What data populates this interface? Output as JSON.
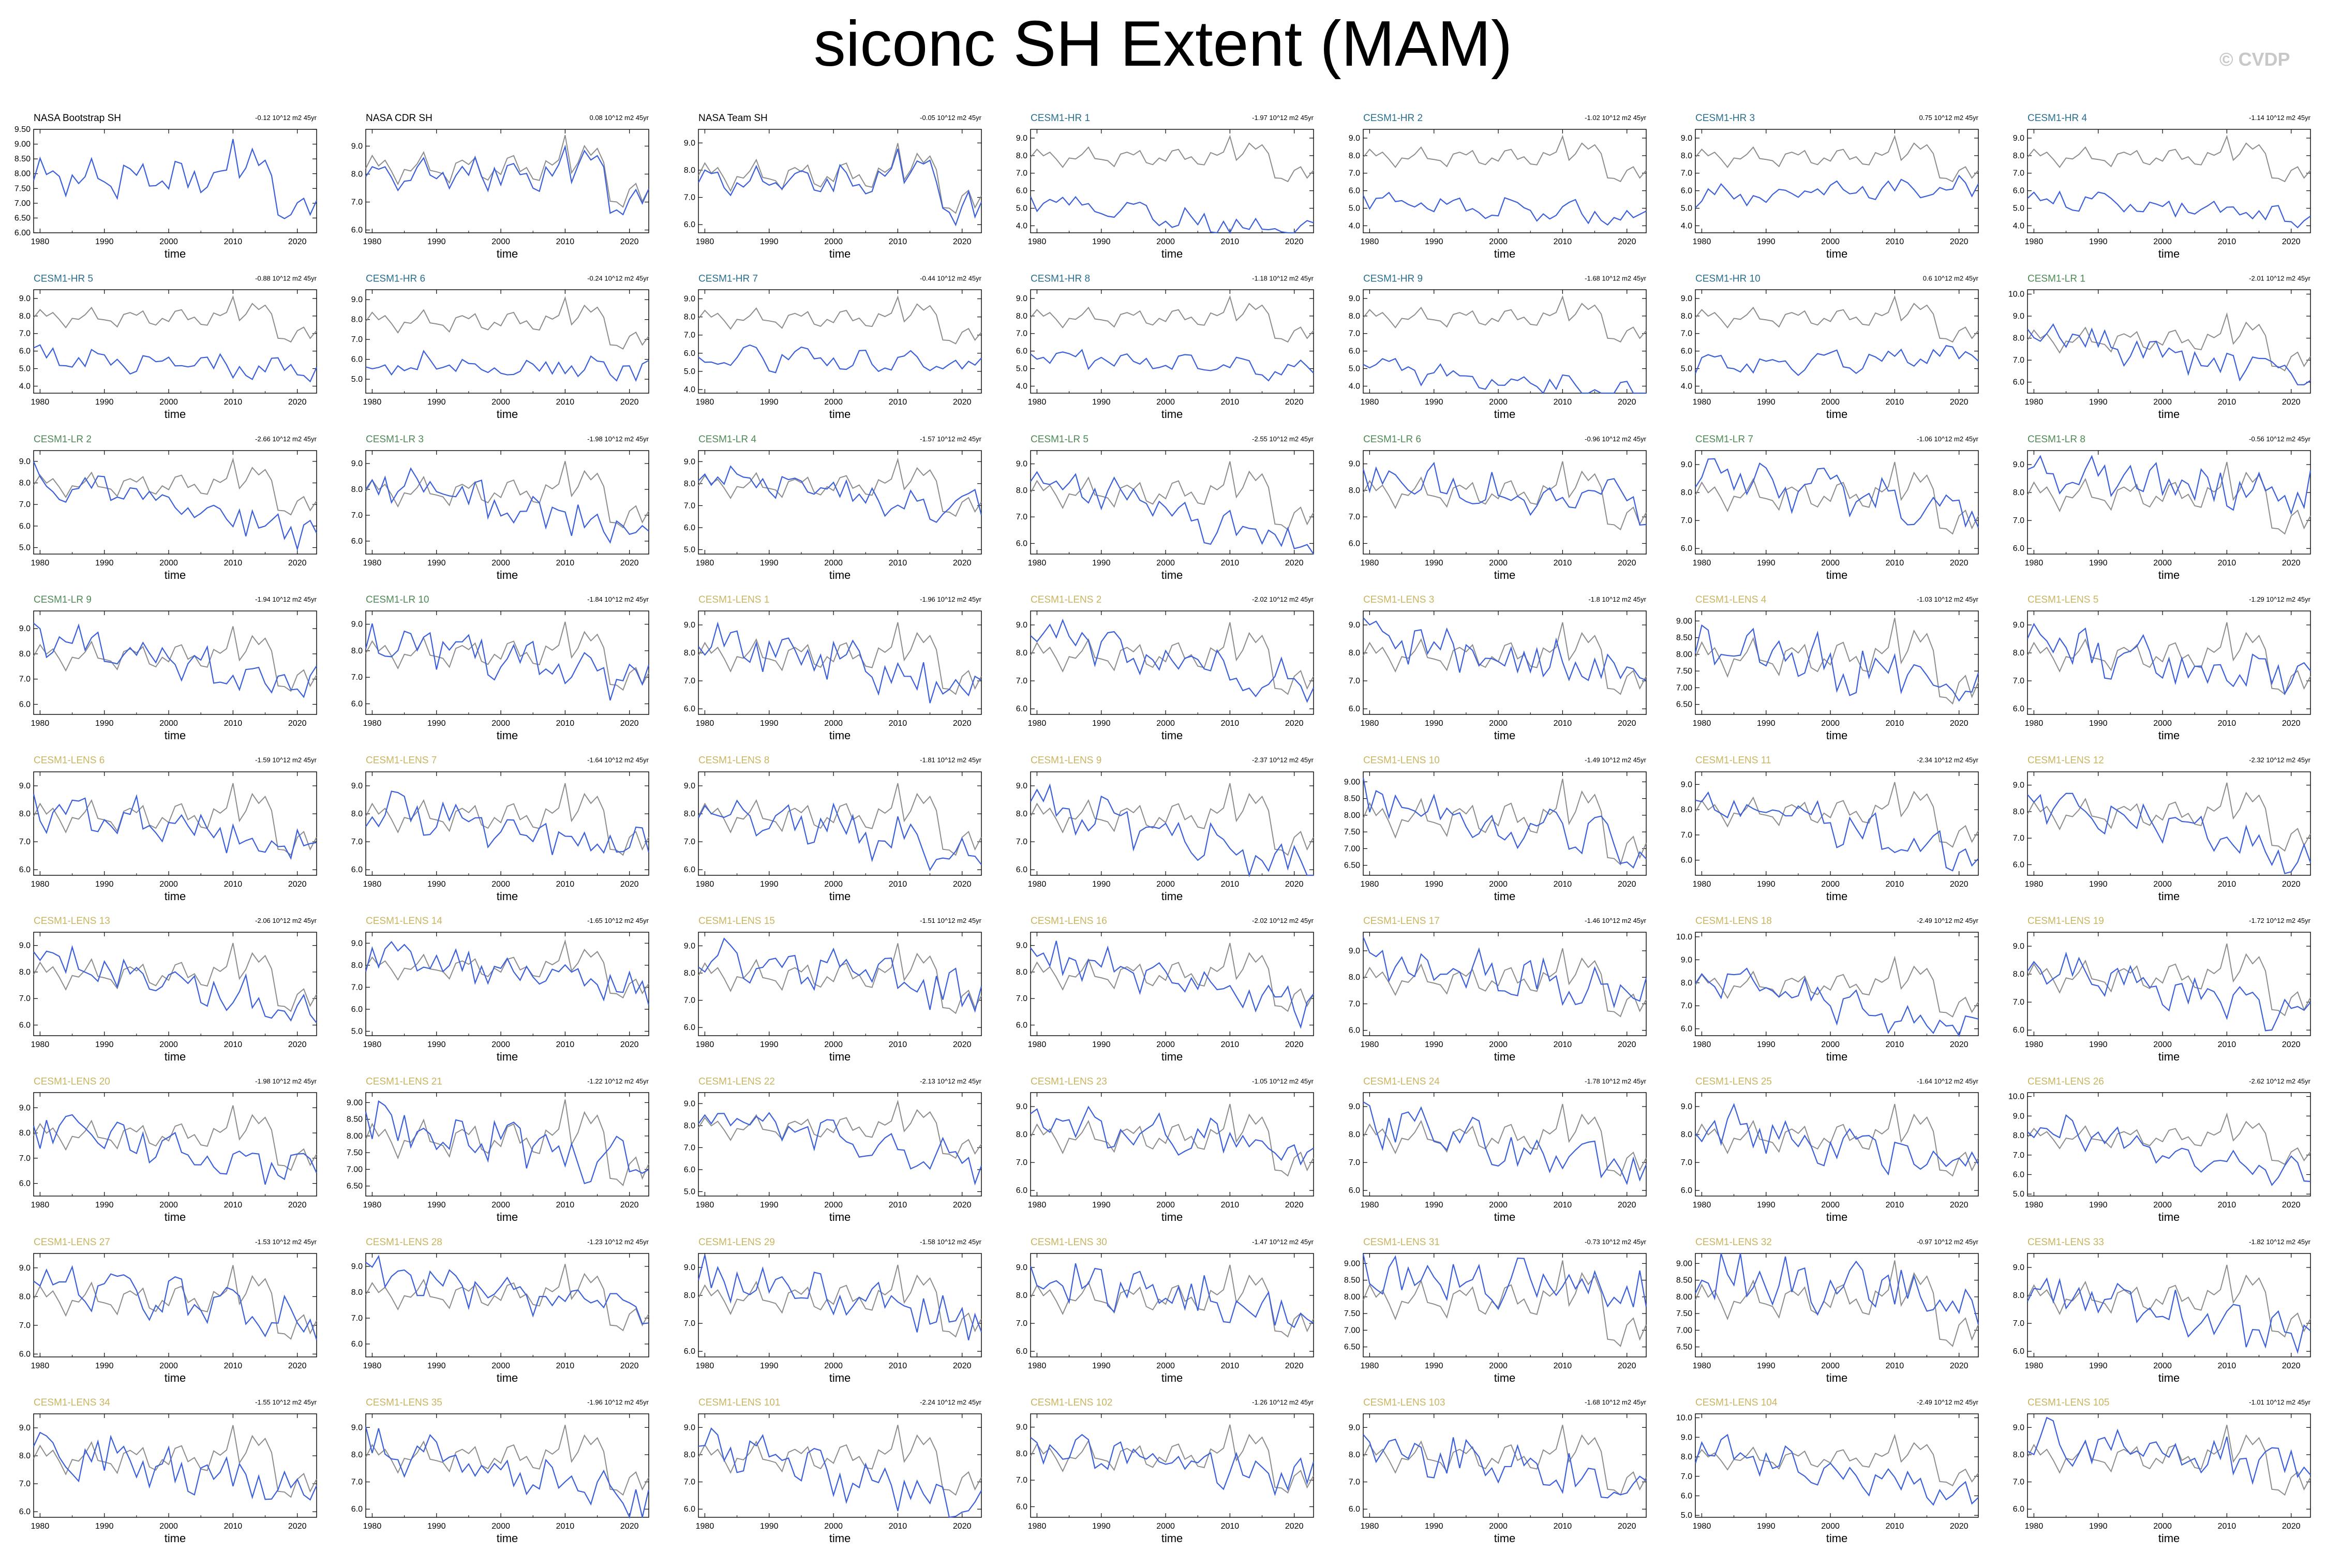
{
  "page": {
    "title": "siconc SH Extent (MAM)",
    "copyright": "© CVDP"
  },
  "colors": {
    "obs": "#000000",
    "hr": "#2a6f8f",
    "lr": "#4d8a55",
    "lens": "#c9b560",
    "model_line": "#3b5fd9",
    "ref_line": "#8c8c8c"
  },
  "chart_data": {
    "type": "line",
    "x_range": [
      1979,
      2023
    ],
    "xticks": [
      "1980",
      "1990",
      "2000",
      "2010",
      "2020"
    ],
    "xlabel": "time",
    "grid": false,
    "panels": [
      {
        "title": "NASA Bootstrap SH",
        "group": "obs",
        "trend": "-0.12 10^12 m2 45yr",
        "yticks": [
          "9.50",
          "9.00",
          "8.50",
          "8.00",
          "7.50",
          "7.00",
          "6.50",
          "6.00"
        ],
        "ylim": [
          6.0,
          9.5
        ]
      },
      {
        "title": "NASA CDR SH",
        "group": "obs",
        "trend": "0.08 10^12 m2 45yr",
        "yticks": [
          "9.0",
          "8.0",
          "7.0",
          "6.0"
        ],
        "ylim": [
          5.9,
          9.6
        ]
      },
      {
        "title": "NASA Team SH",
        "group": "obs",
        "trend": "-0.05 10^12 m2 45yr",
        "yticks": [
          "9.0",
          "8.0",
          "7.0",
          "6.0"
        ],
        "ylim": [
          5.7,
          9.5
        ]
      },
      {
        "title": "CESM1-HR 1",
        "group": "hr",
        "trend": "-1.97 10^12 m2 45yr",
        "yticks": [
          "9.0",
          "8.0",
          "7.0",
          "6.0",
          "5.0",
          "4.0"
        ],
        "ylim": [
          3.6,
          9.5
        ]
      },
      {
        "title": "CESM1-HR 2",
        "group": "hr",
        "trend": "-1.02 10^12 m2 45yr",
        "yticks": [
          "9.0",
          "8.0",
          "7.0",
          "6.0",
          "5.0",
          "4.0"
        ],
        "ylim": [
          3.6,
          9.5
        ]
      },
      {
        "title": "CESM1-HR 3",
        "group": "hr",
        "trend": "0.75 10^12 m2 45yr",
        "yticks": [
          "9.0",
          "8.0",
          "7.0",
          "6.0",
          "5.0",
          "4.0"
        ],
        "ylim": [
          3.6,
          9.5
        ]
      },
      {
        "title": "CESM1-HR 4",
        "group": "hr",
        "trend": "-1.14 10^12 m2 45yr",
        "yticks": [
          "9.0",
          "8.0",
          "7.0",
          "6.0",
          "5.0",
          "4.0"
        ],
        "ylim": [
          3.6,
          9.5
        ]
      },
      {
        "title": "CESM1-HR 5",
        "group": "hr",
        "trend": "-0.88 10^12 m2 45yr",
        "yticks": [
          "9.0",
          "8.0",
          "7.0",
          "6.0",
          "5.0",
          "4.0"
        ],
        "ylim": [
          3.6,
          9.5
        ]
      },
      {
        "title": "CESM1-HR 6",
        "group": "hr",
        "trend": "-0.24 10^12 m2 45yr",
        "yticks": [
          "9.0",
          "8.0",
          "7.0",
          "6.0",
          "5.0"
        ],
        "ylim": [
          4.3,
          9.5
        ]
      },
      {
        "title": "CESM1-HR 7",
        "group": "hr",
        "trend": "-0.44 10^12 m2 45yr",
        "yticks": [
          "9.0",
          "8.0",
          "7.0",
          "6.0",
          "5.0",
          "4.0"
        ],
        "ylim": [
          3.8,
          9.5
        ]
      },
      {
        "title": "CESM1-HR 8",
        "group": "hr",
        "trend": "-1.18 10^12 m2 45yr",
        "yticks": [
          "9.0",
          "8.0",
          "7.0",
          "6.0",
          "5.0",
          "4.0"
        ],
        "ylim": [
          3.6,
          9.5
        ]
      },
      {
        "title": "CESM1-HR 9",
        "group": "hr",
        "trend": "-1.68 10^12 m2 45yr",
        "yticks": [
          "9.0",
          "8.0",
          "7.0",
          "6.0",
          "5.0",
          "4.0"
        ],
        "ylim": [
          3.6,
          9.5
        ]
      },
      {
        "title": "CESM1-HR 10",
        "group": "hr",
        "trend": "0.6 10^12 m2 45yr",
        "yticks": [
          "9.0",
          "8.0",
          "7.0",
          "6.0",
          "5.0",
          "4.0"
        ],
        "ylim": [
          3.6,
          9.5
        ]
      },
      {
        "title": "CESM1-LR 1",
        "group": "lr",
        "trend": "-2.01 10^12 m2 45yr",
        "yticks": [
          "10.0",
          "9.0",
          "8.0",
          "7.0",
          "6.0"
        ],
        "ylim": [
          5.5,
          10.2
        ]
      },
      {
        "title": "CESM1-LR 2",
        "group": "lr",
        "trend": "-2.66 10^12 m2 45yr",
        "yticks": [
          "9.0",
          "8.0",
          "7.0",
          "6.0",
          "5.0"
        ],
        "ylim": [
          4.7,
          9.5
        ]
      },
      {
        "title": "CESM1-LR 3",
        "group": "lr",
        "trend": "-1.98 10^12 m2 45yr",
        "yticks": [
          "9.0",
          "8.0",
          "7.0",
          "6.0"
        ],
        "ylim": [
          5.5,
          9.5
        ]
      },
      {
        "title": "CESM1-LR 4",
        "group": "lr",
        "trend": "-1.57 10^12 m2 45yr",
        "yticks": [
          "9.0",
          "8.0",
          "7.0",
          "6.0",
          "5.0"
        ],
        "ylim": [
          4.8,
          9.5
        ]
      },
      {
        "title": "CESM1-LR 5",
        "group": "lr",
        "trend": "-2.55 10^12 m2 45yr",
        "yticks": [
          "9.0",
          "8.0",
          "7.0",
          "6.0"
        ],
        "ylim": [
          5.6,
          9.5
        ]
      },
      {
        "title": "CESM1-LR 6",
        "group": "lr",
        "trend": "-0.96 10^12 m2 45yr",
        "yticks": [
          "9.0",
          "8.0",
          "7.0",
          "6.0"
        ],
        "ylim": [
          5.6,
          9.5
        ]
      },
      {
        "title": "CESM1-LR 7",
        "group": "lr",
        "trend": "-1.06 10^12 m2 45yr",
        "yticks": [
          "9.0",
          "8.0",
          "7.0",
          "6.0"
        ],
        "ylim": [
          5.8,
          9.5
        ]
      },
      {
        "title": "CESM1-LR 8",
        "group": "lr",
        "trend": "-0.56 10^12 m2 45yr",
        "yticks": [
          "9.0",
          "8.0",
          "7.0",
          "6.0"
        ],
        "ylim": [
          5.8,
          9.5
        ]
      },
      {
        "title": "CESM1-LR 9",
        "group": "lr",
        "trend": "-1.94 10^12 m2 45yr",
        "yticks": [
          "9.0",
          "8.0",
          "7.0",
          "6.0"
        ],
        "ylim": [
          5.6,
          9.7
        ]
      },
      {
        "title": "CESM1-LR 10",
        "group": "lr",
        "trend": "-1.84 10^12 m2 45yr",
        "yticks": [
          "9.0",
          "8.0",
          "7.0",
          "6.0"
        ],
        "ylim": [
          5.6,
          9.5
        ]
      },
      {
        "title": "CESM1-LENS 1",
        "group": "lens",
        "trend": "-1.96 10^12 m2 45yr",
        "yticks": [
          "9.0",
          "8.0",
          "7.0",
          "6.0"
        ],
        "ylim": [
          5.8,
          9.5
        ]
      },
      {
        "title": "CESM1-LENS 2",
        "group": "lens",
        "trend": "-2.02 10^12 m2 45yr",
        "yticks": [
          "9.0",
          "8.0",
          "7.0",
          "6.0"
        ],
        "ylim": [
          5.8,
          9.5
        ]
      },
      {
        "title": "CESM1-LENS 3",
        "group": "lens",
        "trend": "-1.8 10^12 m2 45yr",
        "yticks": [
          "9.0",
          "8.0",
          "7.0",
          "6.0"
        ],
        "ylim": [
          5.8,
          9.5
        ]
      },
      {
        "title": "CESM1-LENS 4",
        "group": "lens",
        "trend": "-1.03 10^12 m2 45yr",
        "yticks": [
          "9.00",
          "8.50",
          "8.00",
          "7.50",
          "7.00",
          "6.50"
        ],
        "ylim": [
          6.2,
          9.3
        ]
      },
      {
        "title": "CESM1-LENS 5",
        "group": "lens",
        "trend": "-1.29 10^12 m2 45yr",
        "yticks": [
          "9.0",
          "8.0",
          "7.0",
          "6.0"
        ],
        "ylim": [
          5.8,
          9.5
        ]
      },
      {
        "title": "CESM1-LENS 6",
        "group": "lens",
        "trend": "-1.59 10^12 m2 45yr",
        "yticks": [
          "9.0",
          "8.0",
          "7.0",
          "6.0"
        ],
        "ylim": [
          5.8,
          9.5
        ]
      },
      {
        "title": "CESM1-LENS 7",
        "group": "lens",
        "trend": "-1.64 10^12 m2 45yr",
        "yticks": [
          "9.0",
          "8.0",
          "7.0",
          "6.0"
        ],
        "ylim": [
          5.8,
          9.5
        ]
      },
      {
        "title": "CESM1-LENS 8",
        "group": "lens",
        "trend": "-1.81 10^12 m2 45yr",
        "yticks": [
          "9.0",
          "8.0",
          "7.0",
          "6.0"
        ],
        "ylim": [
          5.8,
          9.5
        ]
      },
      {
        "title": "CESM1-LENS 9",
        "group": "lens",
        "trend": "-2.37 10^12 m2 45yr",
        "yticks": [
          "9.0",
          "8.0",
          "7.0",
          "6.0"
        ],
        "ylim": [
          5.8,
          9.5
        ]
      },
      {
        "title": "CESM1-LENS 10",
        "group": "lens",
        "trend": "-1.49 10^12 m2 45yr",
        "yticks": [
          "9.00",
          "8.50",
          "8.00",
          "7.50",
          "7.00",
          "6.50"
        ],
        "ylim": [
          6.2,
          9.3
        ]
      },
      {
        "title": "CESM1-LENS 11",
        "group": "lens",
        "trend": "-2.34 10^12 m2 45yr",
        "yticks": [
          "9.0",
          "8.0",
          "7.0",
          "6.0"
        ],
        "ylim": [
          5.4,
          9.5
        ]
      },
      {
        "title": "CESM1-LENS 12",
        "group": "lens",
        "trend": "-2.32 10^12 m2 45yr",
        "yticks": [
          "9.0",
          "8.0",
          "7.0",
          "6.0"
        ],
        "ylim": [
          5.6,
          9.5
        ]
      },
      {
        "title": "CESM1-LENS 13",
        "group": "lens",
        "trend": "-2.06 10^12 m2 45yr",
        "yticks": [
          "9.0",
          "8.0",
          "7.0",
          "6.0"
        ],
        "ylim": [
          5.6,
          9.5
        ]
      },
      {
        "title": "CESM1-LENS 14",
        "group": "lens",
        "trend": "-1.65 10^12 m2 45yr",
        "yticks": [
          "9.0",
          "8.0",
          "7.0",
          "6.0",
          "5.0"
        ],
        "ylim": [
          4.8,
          9.5
        ]
      },
      {
        "title": "CESM1-LENS 15",
        "group": "lens",
        "trend": "-1.51 10^12 m2 45yr",
        "yticks": [
          "9.0",
          "8.0",
          "7.0",
          "6.0"
        ],
        "ylim": [
          5.7,
          9.5
        ]
      },
      {
        "title": "CESM1-LENS 16",
        "group": "lens",
        "trend": "-2.02 10^12 m2 45yr",
        "yticks": [
          "9.0",
          "8.0",
          "7.0",
          "6.0"
        ],
        "ylim": [
          5.6,
          9.5
        ]
      },
      {
        "title": "CESM1-LENS 17",
        "group": "lens",
        "trend": "-1.46 10^12 m2 45yr",
        "yticks": [
          "9.0",
          "8.0",
          "7.0",
          "6.0"
        ],
        "ylim": [
          5.8,
          9.7
        ]
      },
      {
        "title": "CESM1-LENS 18",
        "group": "lens",
        "trend": "-2.49 10^12 m2 45yr",
        "yticks": [
          "10.0",
          "9.0",
          "8.0",
          "7.0",
          "6.0"
        ],
        "ylim": [
          5.7,
          10.2
        ]
      },
      {
        "title": "CESM1-LENS 19",
        "group": "lens",
        "trend": "-1.72 10^12 m2 45yr",
        "yticks": [
          "9.0",
          "8.0",
          "7.0",
          "6.0"
        ],
        "ylim": [
          5.8,
          9.5
        ]
      },
      {
        "title": "CESM1-LENS 20",
        "group": "lens",
        "trend": "-1.98 10^12 m2 45yr",
        "yticks": [
          "9.0",
          "8.0",
          "7.0",
          "6.0"
        ],
        "ylim": [
          5.5,
          9.6
        ]
      },
      {
        "title": "CESM1-LENS 21",
        "group": "lens",
        "trend": "-1.22 10^12 m2 45yr",
        "yticks": [
          "9.00",
          "8.50",
          "8.00",
          "7.50",
          "7.00",
          "6.50"
        ],
        "ylim": [
          6.2,
          9.3
        ]
      },
      {
        "title": "CESM1-LENS 22",
        "group": "lens",
        "trend": "-2.13 10^12 m2 45yr",
        "yticks": [
          "9.0",
          "8.0",
          "7.0",
          "6.0",
          "5.0"
        ],
        "ylim": [
          4.8,
          9.5
        ]
      },
      {
        "title": "CESM1-LENS 23",
        "group": "lens",
        "trend": "-1.05 10^12 m2 45yr",
        "yticks": [
          "9.0",
          "8.0",
          "7.0",
          "6.0"
        ],
        "ylim": [
          5.8,
          9.5
        ]
      },
      {
        "title": "CESM1-LENS 24",
        "group": "lens",
        "trend": "-1.78 10^12 m2 45yr",
        "yticks": [
          "9.0",
          "8.0",
          "7.0",
          "6.0"
        ],
        "ylim": [
          5.8,
          9.5
        ]
      },
      {
        "title": "CESM1-LENS 25",
        "group": "lens",
        "trend": "-1.64 10^12 m2 45yr",
        "yticks": [
          "9.0",
          "8.0",
          "7.0",
          "6.0"
        ],
        "ylim": [
          5.8,
          9.5
        ]
      },
      {
        "title": "CESM1-LENS 26",
        "group": "lens",
        "trend": "-2.62 10^12 m2 45yr",
        "yticks": [
          "10.0",
          "9.0",
          "8.0",
          "7.0",
          "6.0",
          "5.0"
        ],
        "ylim": [
          4.9,
          10.2
        ]
      },
      {
        "title": "CESM1-LENS 27",
        "group": "lens",
        "trend": "-1.53 10^12 m2 45yr",
        "yticks": [
          "9.0",
          "8.0",
          "7.0",
          "6.0"
        ],
        "ylim": [
          5.9,
          9.5
        ]
      },
      {
        "title": "CESM1-LENS 28",
        "group": "lens",
        "trend": "-1.23 10^12 m2 45yr",
        "yticks": [
          "9.0",
          "8.0",
          "7.0",
          "6.0"
        ],
        "ylim": [
          5.5,
          9.5
        ]
      },
      {
        "title": "CESM1-LENS 29",
        "group": "lens",
        "trend": "-1.58 10^12 m2 45yr",
        "yticks": [
          "9.0",
          "8.0",
          "7.0",
          "6.0"
        ],
        "ylim": [
          5.8,
          9.5
        ]
      },
      {
        "title": "CESM1-LENS 30",
        "group": "lens",
        "trend": "-1.47 10^12 m2 45yr",
        "yticks": [
          "9.0",
          "8.0",
          "7.0",
          "6.0"
        ],
        "ylim": [
          5.8,
          9.5
        ]
      },
      {
        "title": "CESM1-LENS 31",
        "group": "lens",
        "trend": "-0.73 10^12 m2 45yr",
        "yticks": [
          "9.00",
          "8.50",
          "8.00",
          "7.50",
          "7.00",
          "6.50"
        ],
        "ylim": [
          6.2,
          9.3
        ]
      },
      {
        "title": "CESM1-LENS 32",
        "group": "lens",
        "trend": "-0.97 10^12 m2 45yr",
        "yticks": [
          "9.00",
          "8.50",
          "8.00",
          "7.50",
          "7.00",
          "6.50"
        ],
        "ylim": [
          6.2,
          9.3
        ]
      },
      {
        "title": "CESM1-LENS 33",
        "group": "lens",
        "trend": "-1.82 10^12 m2 45yr",
        "yticks": [
          "9.0",
          "8.0",
          "7.0",
          "6.0"
        ],
        "ylim": [
          5.8,
          9.5
        ]
      },
      {
        "title": "CESM1-LENS 34",
        "group": "lens",
        "trend": "-1.55 10^12 m2 45yr",
        "yticks": [
          "9.0",
          "8.0",
          "7.0",
          "6.0"
        ],
        "ylim": [
          5.8,
          9.5
        ]
      },
      {
        "title": "CESM1-LENS 35",
        "group": "lens",
        "trend": "-1.96 10^12 m2 45yr",
        "yticks": [
          "9.0",
          "8.0",
          "7.0",
          "6.0"
        ],
        "ylim": [
          5.7,
          9.5
        ]
      },
      {
        "title": "CESM1-LENS 101",
        "group": "lens",
        "trend": "-2.24 10^12 m2 45yr",
        "yticks": [
          "9.0",
          "8.0",
          "7.0",
          "6.0"
        ],
        "ylim": [
          5.7,
          9.5
        ]
      },
      {
        "title": "CESM1-LENS 102",
        "group": "lens",
        "trend": "-1.26 10^12 m2 45yr",
        "yticks": [
          "9.0",
          "8.0",
          "7.0",
          "6.0"
        ],
        "ylim": [
          5.6,
          9.5
        ]
      },
      {
        "title": "CESM1-LENS 103",
        "group": "lens",
        "trend": "-1.68 10^12 m2 45yr",
        "yticks": [
          "9.0",
          "8.0",
          "7.0",
          "6.0"
        ],
        "ylim": [
          5.7,
          9.5
        ]
      },
      {
        "title": "CESM1-LENS 104",
        "group": "lens",
        "trend": "-2.49 10^12 m2 45yr",
        "yticks": [
          "10.0",
          "9.0",
          "8.0",
          "7.0",
          "6.0",
          "5.0"
        ],
        "ylim": [
          4.9,
          10.2
        ]
      },
      {
        "title": "CESM1-LENS 105",
        "group": "lens",
        "trend": "-1.01 10^12 m2 45yr",
        "yticks": [
          "9.0",
          "8.0",
          "7.0",
          "6.0"
        ],
        "ylim": [
          5.7,
          9.5
        ]
      }
    ]
  }
}
